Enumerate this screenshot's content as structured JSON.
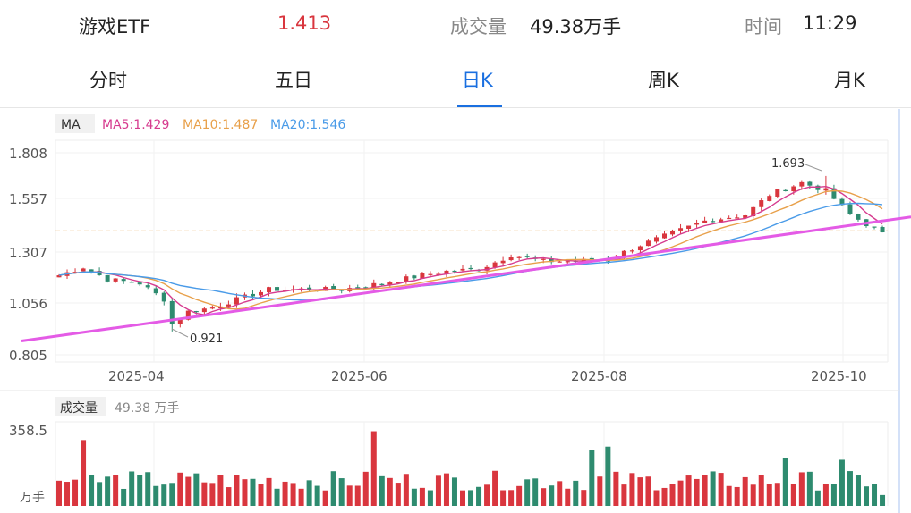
{
  "header": {
    "name": "游戏ETF",
    "price": "1.413",
    "volume_label": "成交量",
    "volume_value": "49.38万手",
    "time_label": "时间",
    "time_value": "11:29"
  },
  "tabs": [
    {
      "label": "分时",
      "active": false
    },
    {
      "label": "五日",
      "active": false
    },
    {
      "label": "日K",
      "active": true
    },
    {
      "label": "周K",
      "active": false
    },
    {
      "label": "月K",
      "active": false
    }
  ],
  "legend": {
    "ma": "MA",
    "ma5": "MA5:1.429",
    "ma10": "MA10:1.487",
    "ma20": "MA20:1.546"
  },
  "volume_legend": {
    "label": "成交量",
    "value": "49.38 万手",
    "axis_max": "358.5",
    "axis_unit": "万手"
  },
  "colors": {
    "up": "#d9363e",
    "down": "#2e8b6f",
    "ma5": "#d63b8f",
    "ma10": "#e8a04a",
    "ma20": "#4a9be8",
    "trend": "#e45be6",
    "ref_line": "#e08a1e",
    "active_tab": "#1a6fe0"
  },
  "chart_data": {
    "type": "candlestick",
    "y_ticks": [
      "1.808",
      "1.557",
      "1.307",
      "1.056",
      "0.805"
    ],
    "ylim": [
      0.805,
      1.808
    ],
    "x_ticks": [
      "2025-04",
      "2025-06",
      "2025-08",
      "2025-10"
    ],
    "high_label": "1.693",
    "low_label": "0.921",
    "reference_price": 1.42,
    "vol_ylim": [
      0,
      358.5
    ],
    "trend_line": [
      [
        0,
        0.9
      ],
      [
        102,
        1.47
      ]
    ]
  }
}
